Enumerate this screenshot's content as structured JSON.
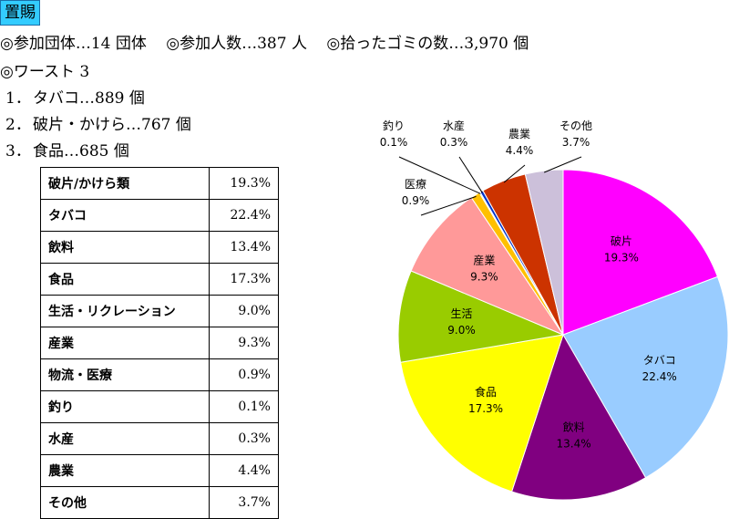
{
  "header": {
    "tag": "置賜"
  },
  "summary": {
    "groups": "◎参加団体…14 団体",
    "participants": "◎参加人数…387 人",
    "garbage": "◎拾ったゴミの数…3,970 個"
  },
  "worst": {
    "title": "◎ワースト 3",
    "items": [
      {
        "rank": "1．",
        "text": "タバコ…889 個"
      },
      {
        "rank": "2．",
        "text": "破片・かけら…767 個"
      },
      {
        "rank": "3．",
        "text": "食品…685 個"
      }
    ]
  },
  "table": {
    "rows": [
      {
        "category": "破片/かけら類",
        "value": "19.3%"
      },
      {
        "category": "タバコ",
        "value": "22.4%"
      },
      {
        "category": "飲料",
        "value": "13.4%"
      },
      {
        "category": "食品",
        "value": "17.3%"
      },
      {
        "category": "生活・リクレーション",
        "value": "9.0%"
      },
      {
        "category": "産業",
        "value": "9.3%"
      },
      {
        "category": "物流・医療",
        "value": "0.9%"
      },
      {
        "category": "釣り",
        "value": "0.1%"
      },
      {
        "category": "水産",
        "value": "0.3%"
      },
      {
        "category": "農業",
        "value": "4.4%"
      },
      {
        "category": "その他",
        "value": "3.7%"
      }
    ]
  },
  "chart_data": {
    "type": "pie",
    "start": "12 o'clock, clockwise",
    "slices": [
      {
        "label": "破片",
        "value": 19.3,
        "text": "19.3%",
        "color": "#ff00ff"
      },
      {
        "label": "タバコ",
        "value": 22.4,
        "text": "22.4%",
        "color": "#99ccff"
      },
      {
        "label": "飲料",
        "value": 13.4,
        "text": "13.4%",
        "color": "#800080"
      },
      {
        "label": "食品",
        "value": 17.3,
        "text": "17.3%",
        "color": "#ffff00"
      },
      {
        "label": "生活",
        "value": 9.0,
        "text": "9.0%",
        "color": "#99cc00"
      },
      {
        "label": "産業",
        "value": 9.3,
        "text": "9.3%",
        "color": "#ff9999"
      },
      {
        "label": "医療",
        "value": 0.9,
        "text": "0.9%",
        "color": "#ffc000"
      },
      {
        "label": "釣り",
        "value": 0.1,
        "text": "0.1%",
        "color": "#008000"
      },
      {
        "label": "水産",
        "value": 0.3,
        "text": "0.3%",
        "color": "#0033cc"
      },
      {
        "label": "農業",
        "value": 4.4,
        "text": "4.4%",
        "color": "#cc3300"
      },
      {
        "label": "その他",
        "value": 3.7,
        "text": "3.7%",
        "color": "#ccc0da"
      }
    ]
  }
}
